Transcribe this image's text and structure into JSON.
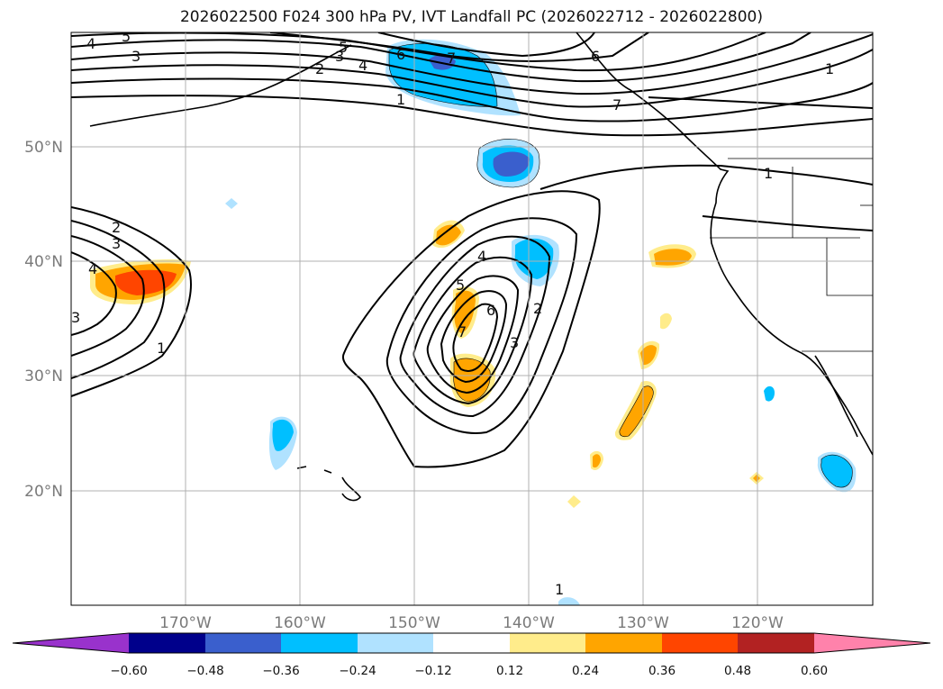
{
  "title": "2026022500 F024 300 hPa PV, IVT Landfall PC (2026022712 - 2026022800)",
  "lat_labels": [
    "50°N",
    "40°N",
    "30°N",
    "20°N"
  ],
  "lon_labels": [
    "170°W",
    "160°W",
    "150°W",
    "140°W",
    "130°W",
    "120°W"
  ],
  "colorbar": {
    "ticks": [
      "−0.60",
      "−0.48",
      "−0.36",
      "−0.24",
      "−0.12",
      "0.12",
      "0.24",
      "0.36",
      "0.48",
      "0.60"
    ],
    "colors": [
      "#9932cc",
      "#00008b",
      "#3a5fcd",
      "#00bfff",
      "#b0e2ff",
      "#ffffff",
      "#ffec8b",
      "#ffa500",
      "#ff4500",
      "#b22222",
      "#ff82ab"
    ]
  },
  "pv_contour_labels": [
    "1",
    "2",
    "3",
    "4",
    "5",
    "6",
    "7",
    "3",
    "4",
    "5",
    "6",
    "7",
    "1",
    "1",
    "2",
    "3",
    "4",
    "1",
    "3",
    "2",
    "3",
    "4",
    "5",
    "6",
    "7",
    "1"
  ],
  "colors": {
    "land_outline": "#000000",
    "grid": "#b0b0b0"
  }
}
